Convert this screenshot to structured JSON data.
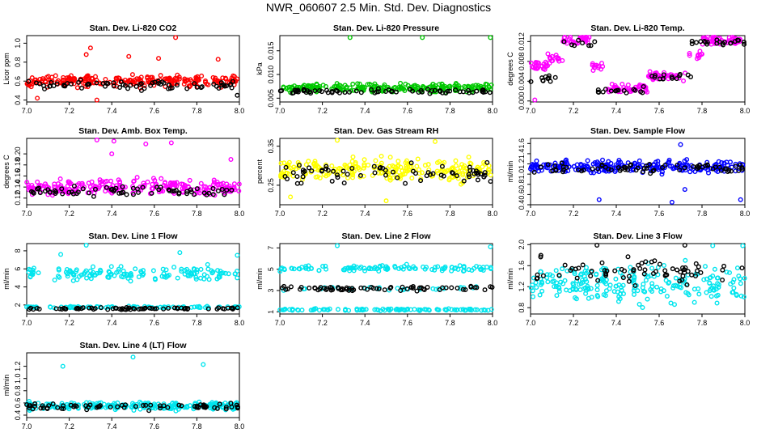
{
  "title": "NWR_060607  2.5 Min. Std. Dev. Diagnostics",
  "chart_data": [
    {
      "type": "scatter",
      "title": "Stan. Dev. Li-820 CO2",
      "ylabel": "Licor ppm",
      "xlim": [
        7.0,
        8.0
      ],
      "ylim": [
        0.38,
        1.08
      ],
      "xticks": [
        "7.0",
        "7.2",
        "7.4",
        "7.6",
        "7.8",
        "8.0"
      ],
      "yticks": [
        {
          "v": 0.4,
          "label": "0.4"
        },
        {
          "v": 0.6,
          "label": "0.6"
        },
        {
          "v": 0.8,
          "label": "0.8"
        },
        {
          "v": 1.0,
          "label": "1.0"
        }
      ],
      "series": [
        {
          "name": "main",
          "color": "#ff0000",
          "mean": 0.6,
          "spread": 0.05,
          "outliers": [
            [
              7.28,
              0.88
            ],
            [
              7.3,
              0.95
            ],
            [
              7.48,
              0.86
            ],
            [
              7.62,
              0.84
            ],
            [
              7.7,
              1.06
            ],
            [
              7.9,
              0.83
            ],
            [
              7.33,
              0.4
            ],
            [
              7.05,
              0.42
            ]
          ]
        },
        {
          "name": "highlight",
          "color": "#000000",
          "mean": 0.56,
          "spread": 0.04,
          "outliers": [
            [
              7.99,
              0.45
            ]
          ]
        }
      ]
    },
    {
      "type": "scatter",
      "title": "Stan. Dev. Li-820 Pressure",
      "ylabel": "kPa",
      "xlim": [
        7.0,
        8.0
      ],
      "ylim": [
        0.0042,
        0.0182
      ],
      "xticks": [
        "7.0",
        "7.2",
        "7.4",
        "7.6",
        "7.8",
        "8.0"
      ],
      "yticks": [
        {
          "v": 0.005,
          "label": "0.005"
        },
        {
          "v": 0.01,
          "label": "0.010"
        },
        {
          "v": 0.015,
          "label": "0.015"
        }
      ],
      "series": [
        {
          "name": "main",
          "color": "#00c800",
          "mean": 0.0072,
          "spread": 0.0007,
          "outliers": [
            [
              7.33,
              0.0178
            ],
            [
              7.67,
              0.0178
            ],
            [
              7.99,
              0.0178
            ],
            [
              7.05,
              0.0062
            ]
          ]
        },
        {
          "name": "highlight",
          "color": "#000000",
          "mean": 0.0064,
          "spread": 0.0004,
          "outliers": []
        }
      ]
    },
    {
      "type": "scatter",
      "title": "Stan. Dev. Li-820 Temp.",
      "ylabel": "degrees C",
      "xlim": [
        7.0,
        8.0
      ],
      "ylim": [
        -0.0002,
        0.0132
      ],
      "xticks": [
        "7.0",
        "7.2",
        "7.4",
        "7.6",
        "7.8",
        "8.0"
      ],
      "yticks": [
        {
          "v": 0.0,
          "label": "0.000"
        },
        {
          "v": 0.004,
          "label": "0.004"
        },
        {
          "v": 0.008,
          "label": "0.008"
        },
        {
          "v": 0.012,
          "label": "0.012"
        }
      ],
      "series": [
        {
          "name": "main",
          "color": "#ff00ff",
          "mean": 0.007,
          "spread": 0.0008,
          "outliers": [
            [
              7.02,
              0.0002
            ]
          ]
        },
        {
          "name": "highlight",
          "color": "#000000",
          "mean": 0.006,
          "spread": 0.0006,
          "outliers": []
        }
      ]
    },
    {
      "type": "scatter",
      "title": "Stan. Dev. Amb. Box Temp.",
      "ylabel": "degrees C",
      "xlim": [
        7.0,
        8.0
      ],
      "ylim": [
        0.108,
        0.228
      ],
      "xticks": [
        "7.0",
        "7.2",
        "7.4",
        "7.6",
        "7.8",
        "8.0"
      ],
      "yticks": [
        {
          "v": 0.12,
          "label": "0.12"
        },
        {
          "v": 0.14,
          "label": "0.14"
        },
        {
          "v": 0.16,
          "label": "0.16"
        },
        {
          "v": 0.18,
          "label": "0.18"
        },
        {
          "v": 0.2,
          "label": "0.20"
        }
      ],
      "series": [
        {
          "name": "main",
          "color": "#ff00ff",
          "mean": 0.14,
          "spread": 0.012,
          "outliers": [
            [
              7.33,
              0.225
            ],
            [
              7.41,
              0.223
            ],
            [
              7.56,
              0.218
            ],
            [
              7.68,
              0.22
            ],
            [
              7.96,
              0.19
            ],
            [
              7.4,
              0.2
            ]
          ]
        },
        {
          "name": "highlight",
          "color": "#000000",
          "mean": 0.132,
          "spread": 0.008,
          "outliers": []
        }
      ]
    },
    {
      "type": "scatter",
      "title": "Stan. Dev. Gas Stream RH",
      "ylabel": "percent",
      "xlim": [
        7.0,
        8.0
      ],
      "ylim": [
        0.2,
        0.37
      ],
      "xticks": [
        "7.0",
        "7.2",
        "7.4",
        "7.6",
        "7.8",
        "8.0"
      ],
      "yticks": [
        {
          "v": 0.25,
          "label": "0.25"
        },
        {
          "v": 0.35,
          "label": "0.35"
        }
      ],
      "series": [
        {
          "name": "main",
          "color": "#ffff00",
          "mean": 0.29,
          "spread": 0.025,
          "outliers": [
            [
              7.27,
              0.365
            ],
            [
              7.73,
              0.362
            ],
            [
              7.05,
              0.22
            ],
            [
              7.5,
              0.21
            ]
          ]
        },
        {
          "name": "highlight",
          "color": "#000000",
          "mean": 0.28,
          "spread": 0.02,
          "outliers": []
        }
      ]
    },
    {
      "type": "scatter",
      "title": "Stan. Dev. Sample Flow",
      "ylabel": "ml/min",
      "xlim": [
        7.0,
        8.0
      ],
      "ylim": [
        0.4,
        1.7
      ],
      "xticks": [
        "7.0",
        "7.2",
        "7.4",
        "7.6",
        "7.8",
        "8.0"
      ],
      "yticks": [
        {
          "v": 0.4,
          "label": "0.4"
        },
        {
          "v": 0.6,
          "label": "0.6"
        },
        {
          "v": 0.8,
          "label": "0.8"
        },
        {
          "v": 1.0,
          "label": "1.0"
        },
        {
          "v": 1.2,
          "label": "1.2"
        },
        {
          "v": 1.4,
          "label": "1.4"
        },
        {
          "v": 1.6,
          "label": "1.6"
        }
      ],
      "series": [
        {
          "name": "main",
          "color": "#0000ff",
          "mean": 1.15,
          "spread": 0.1,
          "outliers": [
            [
              7.32,
              0.5
            ],
            [
              7.66,
              0.45
            ],
            [
              7.98,
              0.5
            ],
            [
              7.72,
              0.7
            ],
            [
              7.7,
              1.58
            ]
          ]
        },
        {
          "name": "highlight",
          "color": "#000000",
          "mean": 1.12,
          "spread": 0.08,
          "outliers": []
        }
      ]
    },
    {
      "type": "scatter",
      "title": "Stan. Dev. Line 1 Flow",
      "ylabel": "ml/min",
      "xlim": [
        7.0,
        8.0
      ],
      "ylim": [
        1.0,
        8.8
      ],
      "xticks": [
        "7.0",
        "7.2",
        "7.4",
        "7.6",
        "7.8",
        "8.0"
      ],
      "yticks": [
        {
          "v": 2,
          "label": "2"
        },
        {
          "v": 4,
          "label": "4"
        },
        {
          "v": 6,
          "label": "6"
        },
        {
          "v": 8,
          "label": "8"
        }
      ],
      "series": [
        {
          "name": "main",
          "color": "#00e5ee",
          "mean": 5.5,
          "spread": 0.6,
          "outliers": [
            [
              7.28,
              8.7
            ],
            [
              7.16,
              7.6
            ],
            [
              7.72,
              7.8
            ],
            [
              7.99,
              7.5
            ]
          ]
        },
        {
          "name": "highlight",
          "color": "#000000",
          "mean": 1.6,
          "spread": 0.1,
          "outliers": []
        }
      ]
    },
    {
      "type": "scatter",
      "title": "Stan. Dev. Line 2 Flow",
      "ylabel": "ml/min",
      "xlim": [
        7.0,
        8.0
      ],
      "ylim": [
        0.8,
        7.4
      ],
      "xticks": [
        "7.0",
        "7.2",
        "7.4",
        "7.6",
        "7.8",
        "8.0"
      ],
      "yticks": [
        {
          "v": 1,
          "label": "1"
        },
        {
          "v": 3,
          "label": "3"
        },
        {
          "v": 5,
          "label": "5"
        },
        {
          "v": 7,
          "label": "7"
        }
      ],
      "series": [
        {
          "name": "main",
          "color": "#00e5ee",
          "mean": 5.1,
          "spread": 0.25,
          "outliers": [
            [
              7.27,
              7.2
            ],
            [
              7.99,
              7.1
            ]
          ]
        },
        {
          "name": "highlight",
          "color": "#000000",
          "mean": 3.2,
          "spread": 0.2,
          "outliers": []
        }
      ]
    },
    {
      "type": "scatter",
      "title": "Stan. Dev. Line 3 Flow",
      "ylabel": "ml/min",
      "xlim": [
        7.0,
        8.0
      ],
      "ylim": [
        0.68,
        2.02
      ],
      "xticks": [
        "7.0",
        "7.2",
        "7.4",
        "7.6",
        "7.8",
        "8.0"
      ],
      "yticks": [
        {
          "v": 0.8,
          "label": "0.8"
        },
        {
          "v": 1.2,
          "label": "1.2"
        },
        {
          "v": 1.6,
          "label": "1.6"
        },
        {
          "v": 2.0,
          "label": "2.0"
        }
      ],
      "series": [
        {
          "name": "main",
          "color": "#00e5ee",
          "mean": 1.25,
          "spread": 0.3,
          "outliers": [
            [
              7.85,
              1.98
            ],
            [
              7.99,
              1.98
            ]
          ]
        },
        {
          "name": "highlight",
          "color": "#000000",
          "mean": 1.5,
          "spread": 0.2,
          "outliers": [
            [
              7.31,
              2.0
            ],
            [
              7.72,
              2.0
            ]
          ]
        }
      ]
    },
    {
      "type": "scatter",
      "title": "Stan. Dev. Line 4 (LT) Flow",
      "ylabel": "ml/min",
      "xlim": [
        7.0,
        8.0
      ],
      "ylim": [
        0.36,
        1.42
      ],
      "xticks": [
        "7.0",
        "7.2",
        "7.4",
        "7.6",
        "7.8",
        "8.0"
      ],
      "yticks": [
        {
          "v": 0.4,
          "label": "0.4"
        },
        {
          "v": 0.6,
          "label": "0.6"
        },
        {
          "v": 0.8,
          "label": "0.8"
        },
        {
          "v": 1.0,
          "label": "1.0"
        },
        {
          "v": 1.2,
          "label": "1.2"
        }
      ],
      "series": [
        {
          "name": "main",
          "color": "#00e5ee",
          "mean": 0.55,
          "spread": 0.05,
          "outliers": [
            [
              7.17,
              1.2
            ],
            [
              7.83,
              1.23
            ],
            [
              7.5,
              1.35
            ]
          ]
        },
        {
          "name": "highlight",
          "color": "#000000",
          "mean": 0.54,
          "spread": 0.04,
          "outliers": []
        }
      ]
    }
  ]
}
